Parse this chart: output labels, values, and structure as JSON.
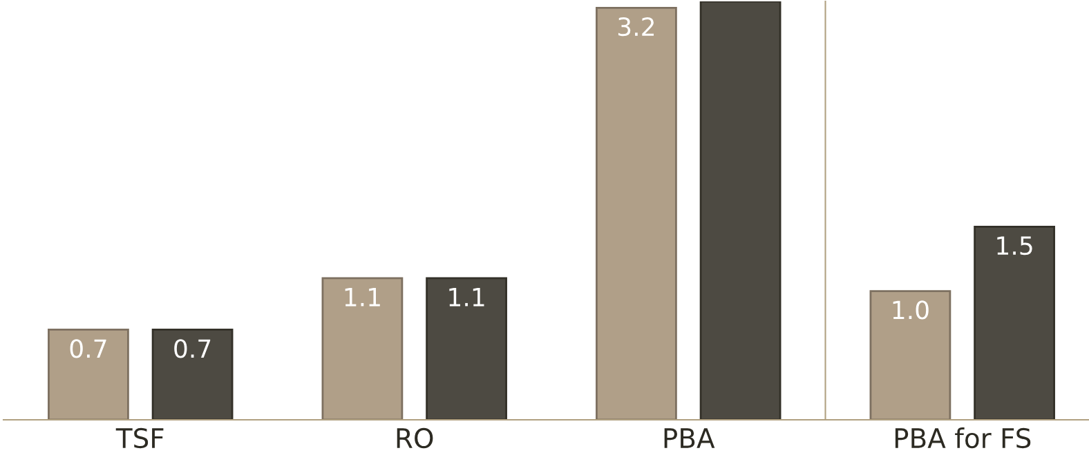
{
  "chart_data": [
    {
      "type": "bar",
      "categories": [
        "TSF",
        "RO",
        "PBA"
      ],
      "series": [
        {
          "color": "#b09f88",
          "values": [
            0.7,
            1.1,
            3.2
          ],
          "value_labels": [
            "0.7",
            "1.1",
            "3.2"
          ]
        },
        {
          "color": "#4d4a42",
          "values": [
            0.7,
            1.1,
            3.25
          ],
          "value_labels": [
            "0.7",
            "1.1",
            null
          ]
        }
      ],
      "ylim": [
        0,
        3.25
      ],
      "grid": false,
      "legend": false,
      "tick_labels": "x"
    },
    {
      "type": "bar",
      "categories": [
        "PBA for FS"
      ],
      "series": [
        {
          "color": "#b09f88",
          "values": [
            1.0
          ],
          "value_labels": [
            "1.0"
          ]
        },
        {
          "color": "#4d4a42",
          "values": [
            1.5
          ],
          "value_labels": [
            "1.5"
          ]
        }
      ],
      "ylim": [
        0,
        3.25
      ],
      "grid": false,
      "legend": false,
      "tick_labels": "x"
    }
  ]
}
